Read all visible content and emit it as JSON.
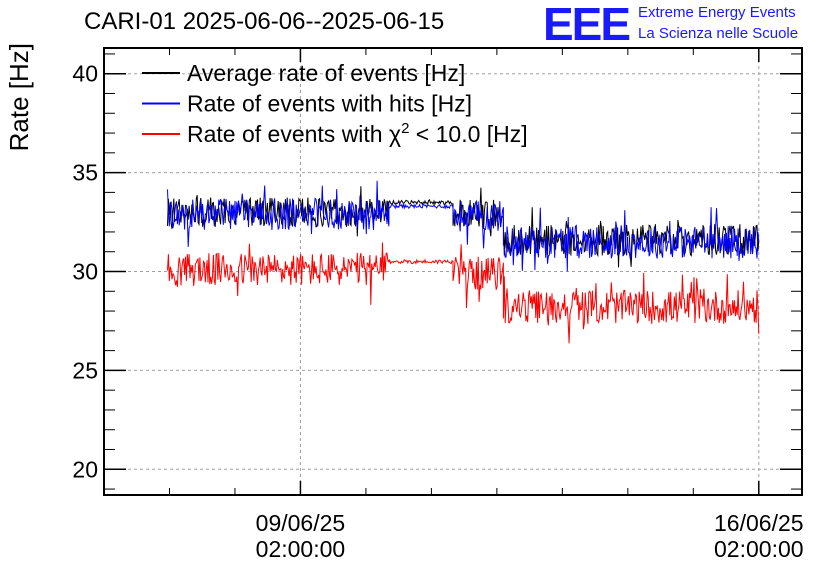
{
  "header": {
    "title": "CARI-01 2025-06-06--2025-06-15",
    "logo_text": "EEE",
    "logo_line1": "Extreme Energy Events",
    "logo_line2": "La Scienza nelle Scuole"
  },
  "colors": {
    "average": "#000000",
    "hits": "#0000ff",
    "chi2": "#ff0000",
    "logo": "#1a1aff",
    "grid": "#a0a0a0"
  },
  "chart_data": {
    "type": "line",
    "title": "CARI-01 2025-06-06--2025-06-15",
    "ylabel": "Rate [Hz]",
    "xlabel": "",
    "ylim": [
      18.7,
      41.3
    ],
    "xlim": [
      0,
      10.66
    ],
    "x_unit": "days since 2025-06-06 02:00",
    "y_ticks": [
      20,
      25,
      30,
      35,
      40
    ],
    "x_ticks": [
      {
        "x": 3,
        "label_date": "09/06/25",
        "label_time": "02:00:00"
      },
      {
        "x": 10,
        "label_date": "16/06/25",
        "label_time": "02:00:00"
      }
    ],
    "grid": true,
    "legend": [
      {
        "key": "average",
        "label": "Average rate of events [Hz]"
      },
      {
        "key": "hits",
        "label": "Rate of events with hits [Hz]"
      },
      {
        "key": "chi2",
        "label_prefix": "Rate of events with ",
        "label_symbol": "χ",
        "label_sup": "2",
        "label_suffix": " < 10.0 [Hz]"
      }
    ],
    "legend_position": "top-left",
    "series": [
      {
        "name": "Average rate of events [Hz]",
        "key": "average",
        "segments": [
          {
            "x": [
              0.97,
              4.35
            ],
            "mean": 33.0,
            "noise": 0.75
          },
          {
            "x": [
              4.35,
              5.33
            ],
            "mean": 33.5,
            "noise": 0.1
          },
          {
            "x": [
              5.33,
              6.1
            ],
            "mean": 32.9,
            "noise": 0.75
          },
          {
            "x": [
              6.1,
              10.0
            ],
            "mean": 31.6,
            "noise": 0.8
          }
        ]
      },
      {
        "name": "Rate of events with hits [Hz]",
        "key": "hits",
        "segments": [
          {
            "x": [
              0.97,
              4.35
            ],
            "mean": 32.9,
            "noise": 0.8
          },
          {
            "x": [
              4.35,
              5.33
            ],
            "mean": 33.3,
            "noise": 0.1
          },
          {
            "x": [
              5.33,
              6.1
            ],
            "mean": 32.8,
            "noise": 0.8
          },
          {
            "x": [
              6.1,
              10.0
            ],
            "mean": 31.5,
            "noise": 0.85
          }
        ]
      },
      {
        "name": "Rate of events with χ2 < 10.0 [Hz]",
        "key": "chi2",
        "segments": [
          {
            "x": [
              0.97,
              4.35
            ],
            "mean": 30.1,
            "noise": 0.85
          },
          {
            "x": [
              4.35,
              5.33
            ],
            "mean": 30.5,
            "noise": 0.1
          },
          {
            "x": [
              5.33,
              6.1
            ],
            "mean": 29.9,
            "noise": 0.85
          },
          {
            "x": [
              6.1,
              10.0
            ],
            "mean": 28.2,
            "noise": 0.85
          }
        ]
      }
    ]
  }
}
